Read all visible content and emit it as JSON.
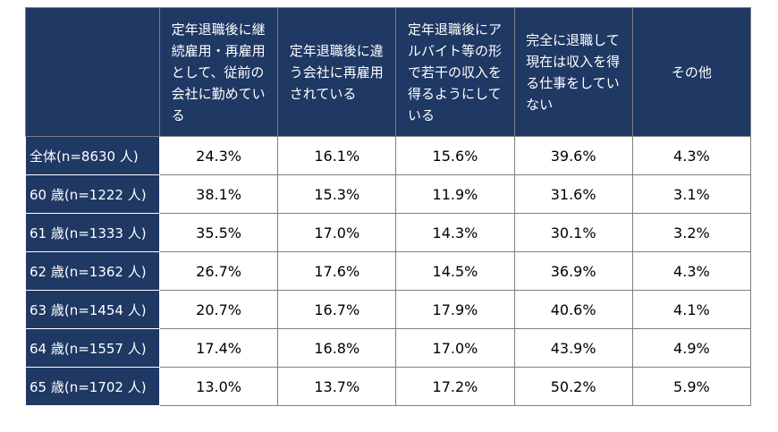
{
  "table": {
    "header": [
      "",
      "定年退職後に継続雇用・再雇用として、従前の会社に勤めている",
      "定年退職後に違う会社に再雇用されている",
      "定年退職後にアルバイト等の形で若干の収入を得るようにしている",
      "完全に退職して現在は収入を得る仕事をしていない",
      "その他"
    ],
    "rows": [
      [
        "全体(n=8630 人)",
        "24.3%",
        "16.1%",
        "15.6%",
        "39.6%",
        "4.3%"
      ],
      [
        "60 歳(n=1222 人)",
        "38.1%",
        "15.3%",
        "11.9%",
        "31.6%",
        "3.1%"
      ],
      [
        "61 歳(n=1333 人)",
        "35.5%",
        "17.0%",
        "14.3%",
        "30.1%",
        "3.2%"
      ],
      [
        "62 歳(n=1362 人)",
        "26.7%",
        "17.6%",
        "14.5%",
        "36.9%",
        "4.3%"
      ],
      [
        "63 歳(n=1454 人)",
        "20.7%",
        "16.7%",
        "17.9%",
        "40.6%",
        "4.1%"
      ],
      [
        "64 歳(n=1557 人)",
        "17.4%",
        "16.8%",
        "17.0%",
        "43.9%",
        "4.9%"
      ],
      [
        "65 歳(n=1702 人)",
        "13.0%",
        "13.7%",
        "17.2%",
        "50.2%",
        "5.9%"
      ]
    ]
  }
}
